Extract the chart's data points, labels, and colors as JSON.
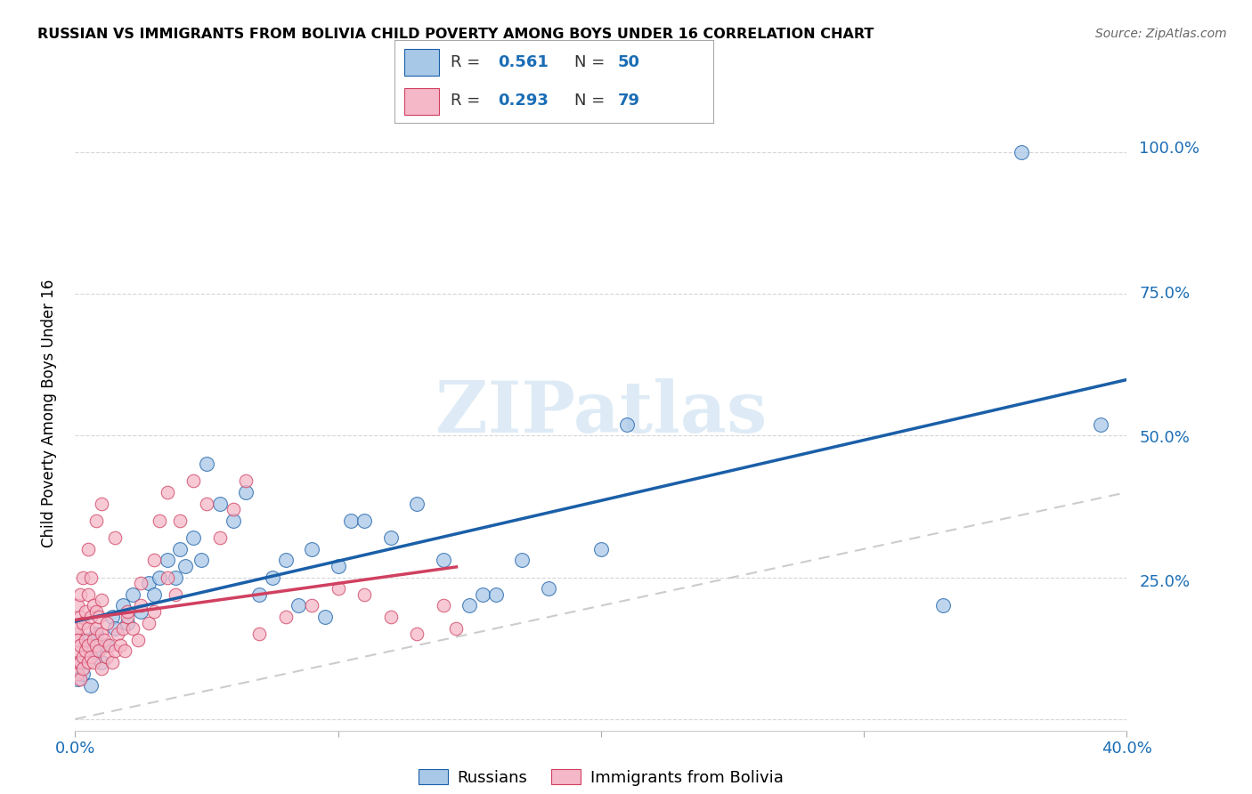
{
  "title": "RUSSIAN VS IMMIGRANTS FROM BOLIVIA CHILD POVERTY AMONG BOYS UNDER 16 CORRELATION CHART",
  "source": "Source: ZipAtlas.com",
  "ylabel": "Child Poverty Among Boys Under 16",
  "xlim": [
    0.0,
    0.4
  ],
  "ylim": [
    -0.02,
    1.1
  ],
  "blue_color": "#a8c8e8",
  "blue_line_color": "#1a5fa8",
  "pink_color": "#f5b8c8",
  "pink_line_color": "#d04060",
  "diag_color": "#cccccc",
  "R_blue": "0.561",
  "N_blue": "50",
  "R_pink": "0.293",
  "N_pink": "79",
  "watermark": "ZIPatlas",
  "legend_russians": "Russians",
  "legend_bolivia": "Immigrants from Bolivia",
  "blue_scatter_x": [
    0.001,
    0.002,
    0.003,
    0.005,
    0.006,
    0.007,
    0.008,
    0.01,
    0.012,
    0.014,
    0.015,
    0.018,
    0.02,
    0.022,
    0.025,
    0.028,
    0.03,
    0.032,
    0.035,
    0.038,
    0.04,
    0.042,
    0.045,
    0.048,
    0.05,
    0.055,
    0.06,
    0.065,
    0.07,
    0.075,
    0.08,
    0.085,
    0.09,
    0.095,
    0.1,
    0.105,
    0.11,
    0.12,
    0.13,
    0.14,
    0.15,
    0.155,
    0.16,
    0.17,
    0.18,
    0.2,
    0.21,
    0.33,
    0.36,
    0.39
  ],
  "blue_scatter_y": [
    0.07,
    0.1,
    0.08,
    0.14,
    0.06,
    0.12,
    0.15,
    0.1,
    0.13,
    0.18,
    0.16,
    0.2,
    0.17,
    0.22,
    0.19,
    0.24,
    0.22,
    0.25,
    0.28,
    0.25,
    0.3,
    0.27,
    0.32,
    0.28,
    0.45,
    0.38,
    0.35,
    0.4,
    0.22,
    0.25,
    0.28,
    0.2,
    0.3,
    0.18,
    0.27,
    0.35,
    0.35,
    0.32,
    0.38,
    0.28,
    0.2,
    0.22,
    0.22,
    0.28,
    0.23,
    0.3,
    0.52,
    0.2,
    1.0,
    0.52
  ],
  "pink_scatter_x": [
    0.0,
    0.0,
    0.001,
    0.001,
    0.001,
    0.001,
    0.001,
    0.002,
    0.002,
    0.002,
    0.002,
    0.002,
    0.003,
    0.003,
    0.003,
    0.003,
    0.004,
    0.004,
    0.004,
    0.005,
    0.005,
    0.005,
    0.005,
    0.006,
    0.006,
    0.006,
    0.007,
    0.007,
    0.007,
    0.008,
    0.008,
    0.008,
    0.009,
    0.009,
    0.01,
    0.01,
    0.01,
    0.011,
    0.012,
    0.012,
    0.013,
    0.014,
    0.015,
    0.016,
    0.017,
    0.018,
    0.019,
    0.02,
    0.022,
    0.024,
    0.025,
    0.028,
    0.03,
    0.032,
    0.035,
    0.038,
    0.04,
    0.045,
    0.05,
    0.055,
    0.06,
    0.065,
    0.07,
    0.08,
    0.09,
    0.1,
    0.11,
    0.12,
    0.13,
    0.14,
    0.145,
    0.005,
    0.008,
    0.01,
    0.015,
    0.02,
    0.025,
    0.03,
    0.035
  ],
  "pink_scatter_y": [
    0.1,
    0.15,
    0.08,
    0.12,
    0.16,
    0.2,
    0.14,
    0.07,
    0.13,
    0.18,
    0.22,
    0.1,
    0.11,
    0.17,
    0.25,
    0.09,
    0.12,
    0.19,
    0.14,
    0.1,
    0.16,
    0.22,
    0.13,
    0.11,
    0.18,
    0.25,
    0.14,
    0.2,
    0.1,
    0.13,
    0.19,
    0.16,
    0.12,
    0.18,
    0.09,
    0.15,
    0.21,
    0.14,
    0.11,
    0.17,
    0.13,
    0.1,
    0.12,
    0.15,
    0.13,
    0.16,
    0.12,
    0.18,
    0.16,
    0.14,
    0.2,
    0.17,
    0.19,
    0.35,
    0.4,
    0.22,
    0.35,
    0.42,
    0.38,
    0.32,
    0.37,
    0.42,
    0.15,
    0.18,
    0.2,
    0.23,
    0.22,
    0.18,
    0.15,
    0.2,
    0.16,
    0.3,
    0.35,
    0.38,
    0.32,
    0.19,
    0.24,
    0.28,
    0.25
  ]
}
